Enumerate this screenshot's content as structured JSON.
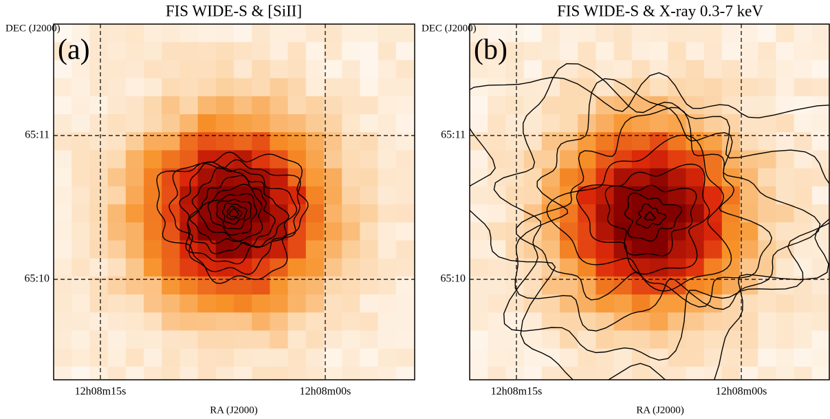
{
  "panels": [
    {
      "title": "FIS WIDE-S & [SiII]",
      "label": "(a)",
      "y_axis_label": "DEC (J2000)",
      "x_axis_label": "RA (J2000)",
      "yticks": [
        "65:11",
        "65:10"
      ],
      "xticks": [
        "12h08m15s",
        "12h08m00s"
      ]
    },
    {
      "title": "FIS WIDE-S & X-ray 0.3-7 keV",
      "label": "(b)",
      "y_axis_label": "DEC (J2000)",
      "x_axis_label": "RA (J2000)",
      "yticks": [
        "65:11",
        "65:10"
      ],
      "xticks": [
        "12h08m15s",
        "12h08m00s"
      ]
    }
  ]
}
